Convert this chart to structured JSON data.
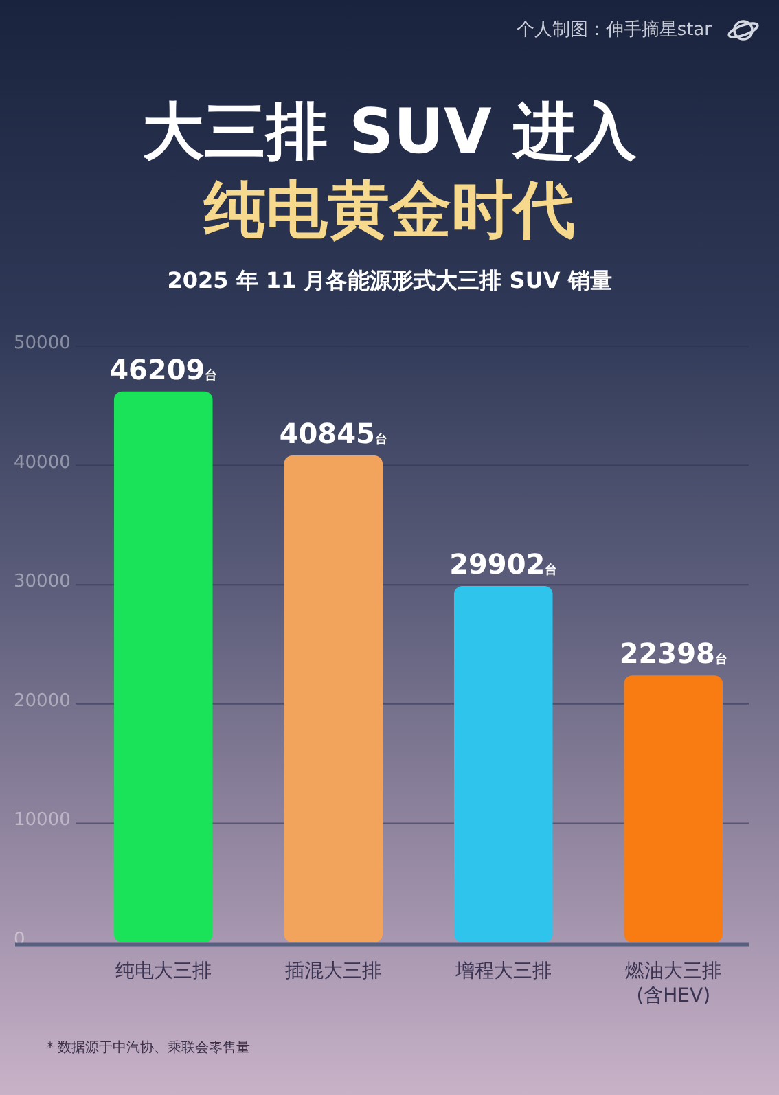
{
  "chart_data": {
    "type": "bar",
    "title": "大三排 SUV 进入纯电黄金时代",
    "subtitle": "2025 年 11 月各能源形式大三排 SUV 销量",
    "categories": [
      "纯电大三排",
      "插混大三排",
      "增程大三排",
      "燃油大三排\n(含HEV)"
    ],
    "values": [
      46209,
      40845,
      29902,
      22398
    ],
    "colors": [
      "#1ae35a",
      "#f2a35c",
      "#2fc4ec",
      "#f97c12"
    ],
    "value_labels": [
      "46209台",
      "40845台",
      "29902台",
      "22398台"
    ],
    "ylim": [
      0,
      50000
    ],
    "yticks": [
      0,
      10000,
      20000,
      30000,
      40000,
      50000
    ],
    "grid": "y",
    "annotations": [
      "个人制图：伸手摘星star",
      "* 数据源于中汽协、乘联会零售量"
    ]
  }
}
